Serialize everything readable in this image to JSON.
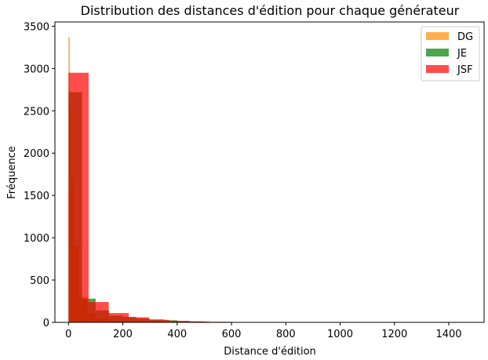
{
  "chart_data": {
    "type": "histogram",
    "title": "Distribution des distances d'édition pour chaque générateur",
    "xlabel": "Distance d'édition",
    "ylabel": "Fréquence",
    "xlim": [
      -50,
      1530
    ],
    "ylim": [
      0,
      3550
    ],
    "xticks": [
      0,
      200,
      400,
      600,
      800,
      1000,
      1200,
      1400
    ],
    "yticks": [
      0,
      500,
      1000,
      1500,
      2000,
      2500,
      3000,
      3500
    ],
    "grid": false,
    "legend_position": "top-right",
    "series": [
      {
        "name": "DG",
        "color": "#ff8c00",
        "alpha": 0.7,
        "bins": [
          {
            "x0": 0,
            "x1": 5,
            "value": 3370
          },
          {
            "x0": 5,
            "x1": 10,
            "value": 2550
          },
          {
            "x0": 10,
            "x1": 20,
            "value": 1700
          },
          {
            "x0": 20,
            "x1": 40,
            "value": 900
          },
          {
            "x0": 40,
            "x1": 70,
            "value": 300
          },
          {
            "x0": 70,
            "x1": 100,
            "value": 110
          },
          {
            "x0": 100,
            "x1": 150,
            "value": 50
          },
          {
            "x0": 150,
            "x1": 250,
            "value": 20
          },
          {
            "x0": 250,
            "x1": 400,
            "value": 8
          },
          {
            "x0": 400,
            "x1": 700,
            "value": 3
          }
        ]
      },
      {
        "name": "JE",
        "color": "#008000",
        "alpha": 0.7,
        "bins": [
          {
            "x0": 0,
            "x1": 50,
            "value": 2720
          },
          {
            "x0": 50,
            "x1": 100,
            "value": 280
          },
          {
            "x0": 100,
            "x1": 150,
            "value": 140
          },
          {
            "x0": 150,
            "x1": 200,
            "value": 80
          },
          {
            "x0": 200,
            "x1": 250,
            "value": 65
          },
          {
            "x0": 250,
            "x1": 300,
            "value": 45
          },
          {
            "x0": 300,
            "x1": 350,
            "value": 35
          },
          {
            "x0": 350,
            "x1": 400,
            "value": 25
          },
          {
            "x0": 400,
            "x1": 450,
            "value": 15
          },
          {
            "x0": 450,
            "x1": 500,
            "value": 12
          },
          {
            "x0": 500,
            "x1": 600,
            "value": 6
          },
          {
            "x0": 600,
            "x1": 700,
            "value": 4
          },
          {
            "x0": 700,
            "x1": 800,
            "value": 3
          },
          {
            "x0": 800,
            "x1": 1000,
            "value": 2
          }
        ]
      },
      {
        "name": "JSF",
        "color": "#ff0000",
        "alpha": 0.7,
        "bins": [
          {
            "x0": 0,
            "x1": 74,
            "value": 2950
          },
          {
            "x0": 74,
            "x1": 148,
            "value": 240
          },
          {
            "x0": 148,
            "x1": 222,
            "value": 110
          },
          {
            "x0": 222,
            "x1": 296,
            "value": 60
          },
          {
            "x0": 296,
            "x1": 370,
            "value": 30
          },
          {
            "x0": 370,
            "x1": 444,
            "value": 18
          },
          {
            "x0": 444,
            "x1": 518,
            "value": 10
          },
          {
            "x0": 518,
            "x1": 592,
            "value": 6
          },
          {
            "x0": 592,
            "x1": 666,
            "value": 4
          },
          {
            "x0": 666,
            "x1": 740,
            "value": 3
          },
          {
            "x0": 740,
            "x1": 814,
            "value": 3
          },
          {
            "x0": 814,
            "x1": 888,
            "value": 2
          },
          {
            "x0": 888,
            "x1": 962,
            "value": 1
          },
          {
            "x0": 1184,
            "x1": 1258,
            "value": 2
          }
        ]
      }
    ]
  }
}
